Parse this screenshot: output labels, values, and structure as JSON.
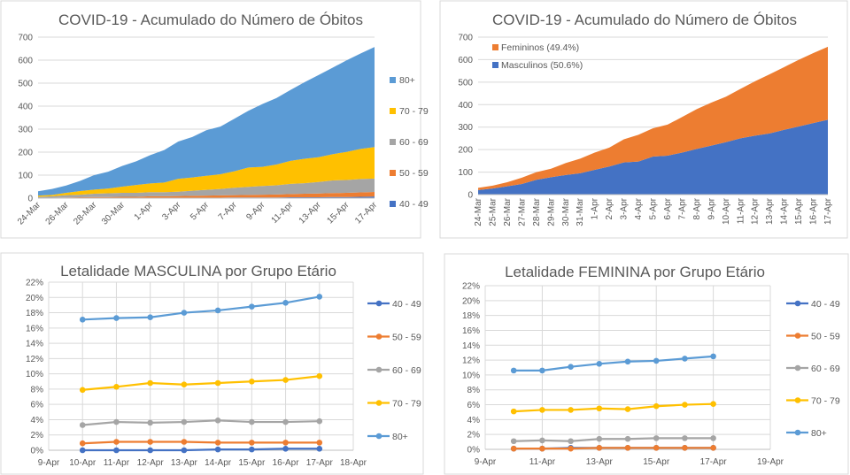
{
  "colors": {
    "40 - 49": "#4472C4",
    "50 - 59": "#ED7D31",
    "60 - 69": "#A5A5A5",
    "70 - 79": "#FFC000",
    "80+": "#5B9BD5",
    "Masculinos": "#4472C4",
    "Femininos": "#ED7D31"
  },
  "chart_data": [
    {
      "type": "area",
      "stacked": true,
      "title": "COVID-19 - Acumulado do Número de Óbitos",
      "categories": [
        "24-Mar",
        "25-Mar",
        "26-Mar",
        "27-Mar",
        "28-Mar",
        "29-Mar",
        "30-Mar",
        "31-Mar",
        "1-Apr",
        "2-Apr",
        "3-Apr",
        "4-Apr",
        "5-Apr",
        "6-Apr",
        "7-Apr",
        "8-Apr",
        "9-Apr",
        "10-Apr",
        "11-Apr",
        "12-Apr",
        "13-Apr",
        "14-Apr",
        "15-Apr",
        "16-Apr",
        "17-Apr"
      ],
      "tick_labels": [
        "24-Mar",
        "26-Mar",
        "28-Mar",
        "30-Mar",
        "1-Apr",
        "3-Apr",
        "5-Apr",
        "7-Apr",
        "9-Apr",
        "11-Apr",
        "13-Apr",
        "15-Apr",
        "17-Apr"
      ],
      "ylim": [
        0,
        700
      ],
      "yticks": [
        0,
        100,
        200,
        300,
        400,
        500,
        600,
        700
      ],
      "grid": true,
      "legend": "right",
      "series": [
        {
          "name": "40 - 49",
          "values": [
            0,
            0,
            0,
            0,
            0,
            0,
            0,
            0,
            1,
            1,
            1,
            2,
            2,
            2,
            3,
            3,
            3,
            3,
            4,
            4,
            4,
            5,
            5,
            6,
            7
          ]
        },
        {
          "name": "50 - 59",
          "values": [
            1,
            2,
            3,
            4,
            5,
            5,
            6,
            6,
            7,
            7,
            8,
            8,
            9,
            10,
            10,
            11,
            12,
            13,
            14,
            15,
            16,
            17,
            18,
            19,
            20
          ]
        },
        {
          "name": "60 - 69",
          "values": [
            5,
            6,
            10,
            11,
            14,
            16,
            17,
            17,
            18,
            18,
            19,
            22,
            25,
            28,
            32,
            35,
            38,
            40,
            44,
            46,
            50,
            55,
            56,
            58,
            58
          ]
        },
        {
          "name": "70 - 79",
          "values": [
            5,
            6,
            10,
            16,
            18,
            21,
            27,
            34,
            38,
            42,
            56,
            58,
            61,
            64,
            72,
            84,
            83,
            90,
            100,
            106,
            108,
            114,
            122,
            131,
            137
          ]
        },
        {
          "name": "80+",
          "values": [
            19,
            26,
            32,
            44,
            63,
            73,
            90,
            103,
            123,
            141,
            162,
            176,
            198,
            207,
            228,
            247,
            273,
            289,
            308,
            333,
            357,
            376,
            398,
            415,
            435
          ]
        }
      ],
      "legend_order": [
        "80+",
        "70 - 79",
        "60 - 69",
        "50 - 59",
        "40 - 49"
      ]
    },
    {
      "type": "area",
      "stacked": true,
      "title": "COVID-19 - Acumulado do Número de Óbitos",
      "categories": [
        "24-Mar",
        "25-Mar",
        "26-Mar",
        "27-Mar",
        "28-Mar",
        "29-Mar",
        "30-Mar",
        "31-Mar",
        "1-Apr",
        "2-Apr",
        "3-Apr",
        "4-Apr",
        "5-Apr",
        "6-Apr",
        "7-Apr",
        "8-Apr",
        "9-Apr",
        "10-Apr",
        "11-Apr",
        "12-Apr",
        "13-Apr",
        "14-Apr",
        "15-Apr",
        "16-Apr",
        "17-Apr"
      ],
      "ylim": [
        0,
        700
      ],
      "yticks": [
        0,
        100,
        200,
        300,
        400,
        500,
        600,
        700
      ],
      "grid": true,
      "legend": "top-left",
      "series": [
        {
          "name": "Masculinos",
          "label": "Masculinos (50.6%)",
          "values": [
            20,
            27,
            37,
            47,
            66,
            77,
            87,
            95,
            110,
            125,
            143,
            147,
            169,
            173,
            187,
            203,
            218,
            233,
            250,
            262,
            272,
            288,
            303,
            318,
            333
          ]
        },
        {
          "name": "Femininos",
          "label": "Femininos (49.4%)",
          "values": [
            10,
            13,
            18,
            28,
            34,
            38,
            53,
            65,
            77,
            84,
            103,
            119,
            126,
            138,
            158,
            177,
            191,
            202,
            220,
            242,
            263,
            279,
            296,
            311,
            324
          ]
        }
      ],
      "legend_order": [
        "Femininos",
        "Masculinos"
      ]
    },
    {
      "type": "line",
      "title": "Letalidade MASCULINA por Grupo Etário",
      "x": [
        10,
        11,
        12,
        13,
        14,
        15,
        16,
        17
      ],
      "xlim": [
        9,
        18
      ],
      "tick_labels": [
        "9-Apr",
        "10-Apr",
        "11-Apr",
        "12-Apr",
        "13-Apr",
        "14-Apr",
        "15-Apr",
        "16-Apr",
        "17-Apr",
        "18-Apr"
      ],
      "ylim": [
        0,
        22
      ],
      "yticks": [
        "0%",
        "2%",
        "4%",
        "6%",
        "8%",
        "10%",
        "12%",
        "14%",
        "16%",
        "18%",
        "20%",
        "22%"
      ],
      "grid": true,
      "legend": "right",
      "series": [
        {
          "name": "40 - 49",
          "values": [
            0.0,
            0.0,
            0.0,
            0.0,
            0.1,
            0.1,
            0.2,
            0.2
          ]
        },
        {
          "name": "50 - 59",
          "values": [
            0.9,
            1.1,
            1.1,
            1.1,
            1.0,
            1.0,
            1.0,
            1.0
          ]
        },
        {
          "name": "60 - 69",
          "values": [
            3.3,
            3.7,
            3.6,
            3.7,
            3.9,
            3.7,
            3.7,
            3.8
          ]
        },
        {
          "name": "70 - 79",
          "values": [
            7.9,
            8.3,
            8.8,
            8.6,
            8.8,
            9.0,
            9.2,
            9.7
          ]
        },
        {
          "name": "80+",
          "values": [
            17.1,
            17.3,
            17.4,
            18.0,
            18.3,
            18.8,
            19.3,
            20.1
          ]
        }
      ]
    },
    {
      "type": "line",
      "title": "Letalidade FEMININA por Grupo Etário",
      "x": [
        10,
        11,
        12,
        13,
        14,
        15,
        16,
        17
      ],
      "xlim": [
        9,
        19
      ],
      "tick_labels": [
        "9-Apr",
        "11-Apr",
        "13-Apr",
        "15-Apr",
        "17-Apr",
        "19-Apr"
      ],
      "ylim": [
        0,
        22
      ],
      "yticks": [
        "0%",
        "2%",
        "4%",
        "6%",
        "8%",
        "10%",
        "12%",
        "14%",
        "16%",
        "18%",
        "20%",
        "22%"
      ],
      "grid": true,
      "legend": "right",
      "series": [
        {
          "name": "40 - 49",
          "values": [
            0.1,
            0.1,
            0.2,
            0.2,
            0.2,
            0.2,
            0.2,
            0.2
          ]
        },
        {
          "name": "50 - 59",
          "values": [
            0.1,
            0.1,
            0.1,
            0.2,
            0.2,
            0.2,
            0.2,
            0.2
          ]
        },
        {
          "name": "60 - 69",
          "values": [
            1.1,
            1.2,
            1.1,
            1.4,
            1.4,
            1.5,
            1.5,
            1.5
          ]
        },
        {
          "name": "70 - 79",
          "values": [
            5.1,
            5.3,
            5.3,
            5.5,
            5.4,
            5.8,
            6.0,
            6.1
          ]
        },
        {
          "name": "80+",
          "values": [
            10.6,
            10.6,
            11.1,
            11.5,
            11.8,
            11.9,
            12.2,
            12.5
          ]
        }
      ]
    }
  ]
}
